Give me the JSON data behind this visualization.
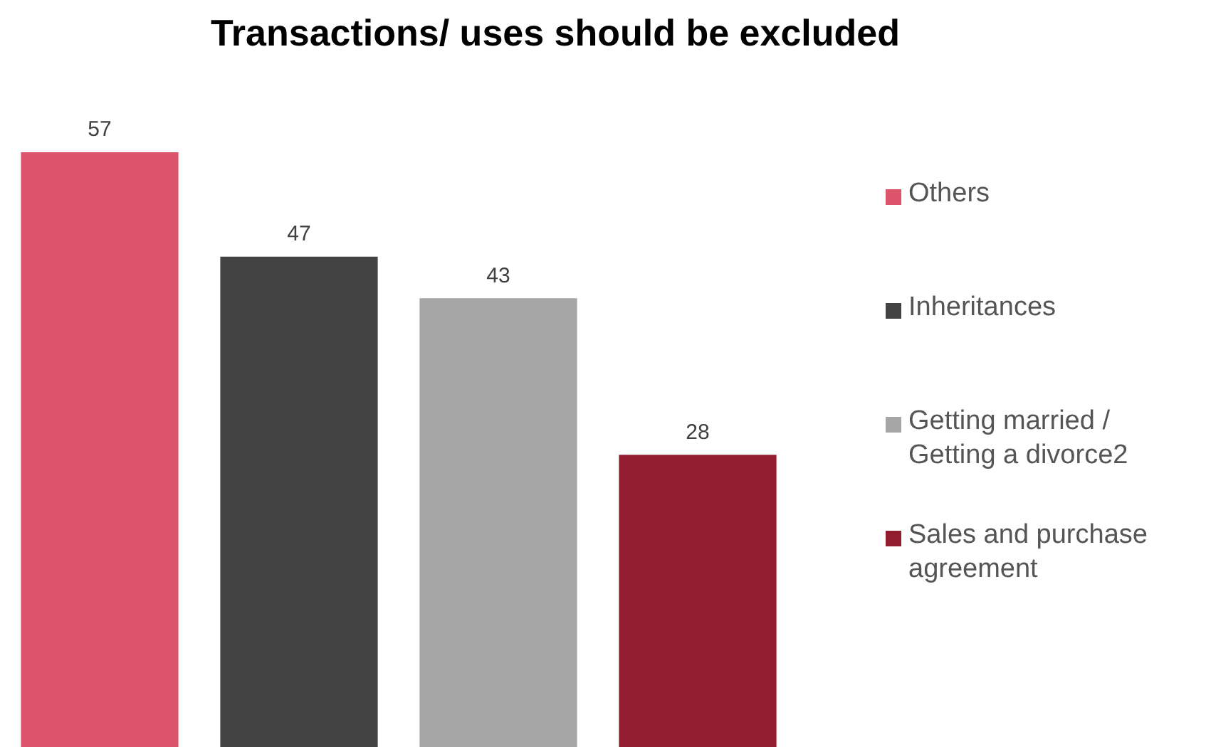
{
  "chart_data": {
    "type": "bar",
    "title": "Transactions/ uses should be excluded",
    "categories": [
      null,
      null,
      null,
      null
    ],
    "stacked": true,
    "series": [
      {
        "name": "Others",
        "color": "#dc5469",
        "values": [
          57,
          null,
          null,
          null
        ]
      },
      {
        "name": "Inheritances",
        "color": "#434343",
        "values": [
          null,
          47,
          null,
          null
        ]
      },
      {
        "name": "Getting married / Getting a divorce2",
        "color": "#a6a6a6",
        "values": [
          null,
          null,
          43,
          null
        ]
      },
      {
        "name": "Sales and purchase agreement",
        "color": "#921c30",
        "values": [
          null,
          null,
          null,
          28
        ]
      }
    ],
    "data_labels": true,
    "legend": "right",
    "tick_labels": false
  }
}
